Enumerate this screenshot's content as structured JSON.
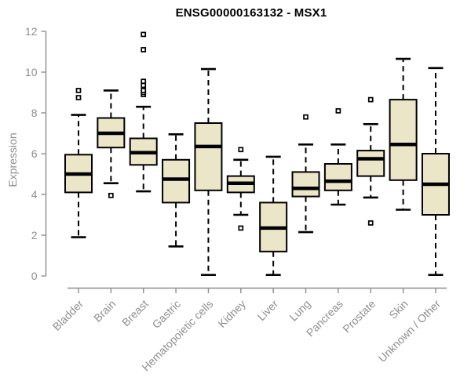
{
  "header": {
    "title": "ENSG00000163132 - MSX1"
  },
  "chart_data": {
    "type": "boxplot",
    "title": "ENSG00000163132 - MSX1",
    "xlabel": "",
    "ylabel": "Expression",
    "ylim": [
      0,
      12
    ],
    "yticks": [
      0,
      2,
      4,
      6,
      8,
      10,
      12
    ],
    "grid": false,
    "legend": "none",
    "categories": [
      "Bladder",
      "Brain",
      "Breast",
      "Gastric",
      "Hematopoietic cells",
      "Kidney",
      "Liver",
      "Lung",
      "Pancreas",
      "Prostate",
      "Skin",
      "Unknown / Other"
    ],
    "series": [
      {
        "name": "Bladder",
        "low": 1.9,
        "q1": 4.1,
        "median": 5.0,
        "q3": 5.95,
        "high": 7.9,
        "outliers": [
          8.75,
          9.1
        ]
      },
      {
        "name": "Brain",
        "low": 4.55,
        "q1": 6.3,
        "median": 7.0,
        "q3": 7.75,
        "high": 9.1,
        "outliers": [
          3.95
        ]
      },
      {
        "name": "Breast",
        "low": 4.15,
        "q1": 5.45,
        "median": 6.05,
        "q3": 6.75,
        "high": 8.3,
        "outliers": [
          8.9,
          9.0,
          9.1,
          9.35,
          9.55,
          11.1,
          11.85
        ]
      },
      {
        "name": "Gastric",
        "low": 1.45,
        "q1": 3.6,
        "median": 4.75,
        "q3": 5.7,
        "high": 6.95,
        "outliers": []
      },
      {
        "name": "Hematopoietic cells",
        "low": 0.05,
        "q1": 4.2,
        "median": 6.35,
        "q3": 7.5,
        "high": 10.15,
        "outliers": []
      },
      {
        "name": "Kidney",
        "low": 3.0,
        "q1": 4.1,
        "median": 4.55,
        "q3": 4.9,
        "high": 5.7,
        "outliers": [
          2.35,
          6.2
        ]
      },
      {
        "name": "Liver",
        "low": 0.05,
        "q1": 1.2,
        "median": 2.35,
        "q3": 3.6,
        "high": 5.85,
        "outliers": []
      },
      {
        "name": "Lung",
        "low": 2.15,
        "q1": 3.9,
        "median": 4.3,
        "q3": 5.1,
        "high": 6.45,
        "outliers": [
          7.8
        ]
      },
      {
        "name": "Pancreas",
        "low": 3.5,
        "q1": 4.2,
        "median": 4.65,
        "q3": 5.5,
        "high": 6.45,
        "outliers": [
          8.1
        ]
      },
      {
        "name": "Prostate",
        "low": 3.85,
        "q1": 4.9,
        "median": 5.75,
        "q3": 6.15,
        "high": 7.45,
        "outliers": [
          2.6,
          8.65
        ]
      },
      {
        "name": "Skin",
        "low": 3.25,
        "q1": 4.7,
        "median": 6.45,
        "q3": 8.65,
        "high": 10.65,
        "outliers": []
      },
      {
        "name": "Unknown / Other",
        "low": 0.05,
        "q1": 3.0,
        "median": 4.5,
        "q3": 6.0,
        "high": 10.2,
        "outliers": []
      }
    ],
    "colors": {
      "box_fill": "#ECE6C8",
      "box_border": "#000000",
      "median": "#000000",
      "whisker": "#000000",
      "outlier_fill": "#ffffff",
      "axis": "#8e8e8e",
      "tick_label": "#8e8e8e",
      "title": "#000000",
      "background": "#ffffff"
    }
  }
}
